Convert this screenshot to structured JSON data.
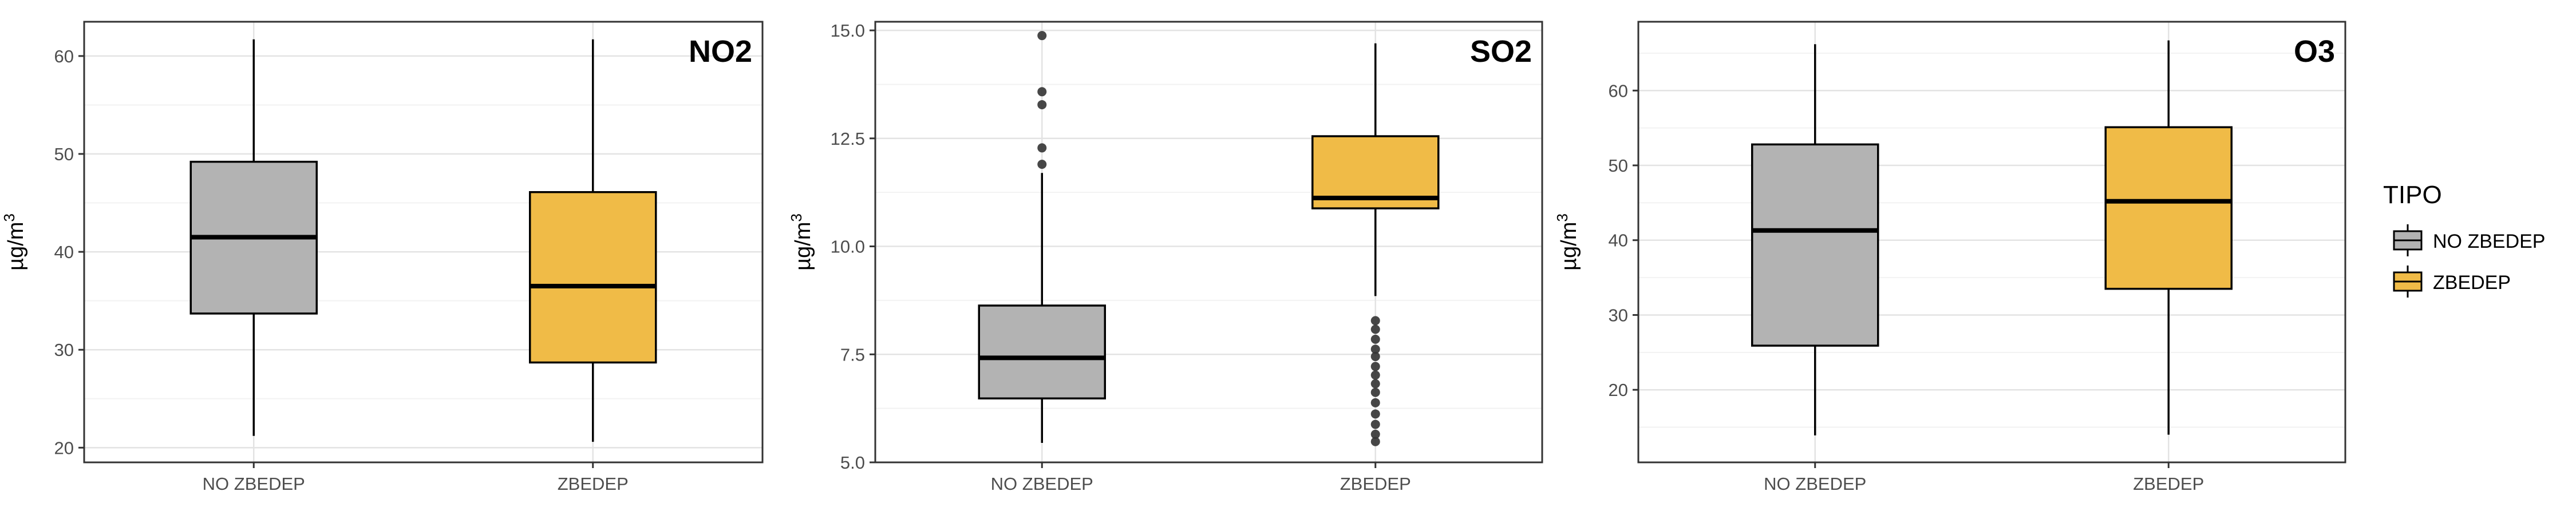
{
  "colors": {
    "no_zbedep": "#B3B3B3",
    "zbedep": "#F0BB47",
    "panel_border": "#333333",
    "grid_major": "#E3E3E3",
    "grid_minor": "#F2F2F2"
  },
  "legend": {
    "title": "TIPO",
    "items": [
      {
        "label": "NO ZBEDEP",
        "color_key": "no_zbedep"
      },
      {
        "label": "ZBEDEP",
        "color_key": "zbedep"
      }
    ]
  },
  "chart_data": [
    {
      "type": "box",
      "title": "NO2",
      "ylabel_base": "µg/m",
      "ylabel_sup": "3",
      "ylim": [
        18.5,
        63.5
      ],
      "yticks": [
        20,
        30,
        40,
        50,
        60
      ],
      "ytick_labels": [
        "20",
        "30",
        "40",
        "50",
        "60"
      ],
      "minor_yticks": [
        25,
        35,
        45,
        55
      ],
      "categories": [
        "NO ZBEDEP",
        "ZBEDEP"
      ],
      "boxes": [
        {
          "category": "NO ZBEDEP",
          "whisker_low": 21.2,
          "q1": 33.7,
          "median": 41.5,
          "q3": 49.2,
          "whisker_high": 61.7,
          "outliers": []
        },
        {
          "category": "ZBEDEP",
          "whisker_low": 20.6,
          "q1": 28.7,
          "median": 36.5,
          "q3": 46.1,
          "whisker_high": 61.7,
          "outliers": []
        }
      ]
    },
    {
      "type": "box",
      "title": "SO2",
      "ylabel_base": "µg/m",
      "ylabel_sup": "3",
      "ylim": [
        5.0,
        15.2
      ],
      "yticks": [
        5.0,
        7.5,
        10.0,
        12.5,
        15.0
      ],
      "ytick_labels": [
        "5.0",
        "7.5",
        "10.0",
        "12.5",
        "15.0"
      ],
      "minor_yticks": [
        6.25,
        8.75,
        11.25,
        13.75
      ],
      "categories": [
        "NO ZBEDEP",
        "ZBEDEP"
      ],
      "boxes": [
        {
          "category": "NO ZBEDEP",
          "whisker_low": 5.45,
          "q1": 6.48,
          "median": 7.42,
          "q3": 8.63,
          "whisker_high": 11.7,
          "outliers": [
            11.9,
            12.28,
            13.28,
            13.58,
            14.88
          ]
        },
        {
          "category": "ZBEDEP",
          "whisker_low": 8.85,
          "q1": 10.88,
          "median": 11.12,
          "q3": 12.55,
          "whisker_high": 14.7,
          "outliers": [
            8.28,
            8.08,
            7.85,
            7.62,
            7.45,
            7.22,
            7.02,
            6.82,
            6.62,
            6.38,
            6.12,
            5.88,
            5.65,
            5.48
          ]
        }
      ]
    },
    {
      "type": "box",
      "title": "O3",
      "ylabel_base": "µg/m",
      "ylabel_sup": "3",
      "ylim": [
        10.3,
        69.2
      ],
      "yticks": [
        20,
        30,
        40,
        50,
        60
      ],
      "ytick_labels": [
        "20",
        "30",
        "40",
        "50",
        "60"
      ],
      "minor_yticks": [
        15,
        25,
        35,
        45,
        55,
        65
      ],
      "categories": [
        "NO ZBEDEP",
        "ZBEDEP"
      ],
      "boxes": [
        {
          "category": "NO ZBEDEP",
          "whisker_low": 13.9,
          "q1": 25.9,
          "median": 41.3,
          "q3": 52.8,
          "whisker_high": 66.2,
          "outliers": []
        },
        {
          "category": "ZBEDEP",
          "whisker_low": 14.0,
          "q1": 33.5,
          "median": 45.2,
          "q3": 55.1,
          "whisker_high": 66.7,
          "outliers": []
        }
      ]
    }
  ]
}
